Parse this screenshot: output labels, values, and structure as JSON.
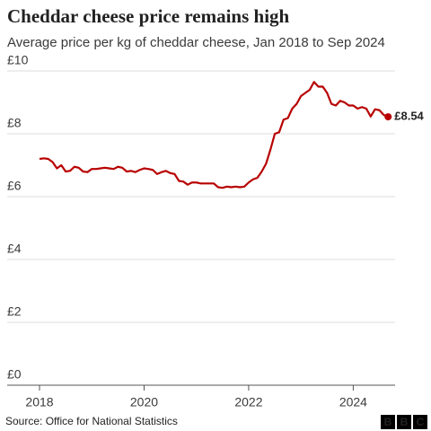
{
  "chart_data": {
    "type": "line",
    "title": "Cheddar cheese price remains high",
    "subtitle": "Average price per kg of cheddar cheese, Jan 2018 to Sep 2024",
    "source": "Source: Office for National Statistics",
    "logo": [
      "B",
      "B",
      "C"
    ],
    "x": [
      2018,
      2018.083,
      2018.167,
      2018.25,
      2018.333,
      2018.417,
      2018.5,
      2018.583,
      2018.667,
      2018.75,
      2018.833,
      2018.917,
      2019,
      2019.083,
      2019.167,
      2019.25,
      2019.333,
      2019.417,
      2019.5,
      2019.583,
      2019.667,
      2019.75,
      2019.833,
      2019.917,
      2020,
      2020.083,
      2020.167,
      2020.25,
      2020.333,
      2020.417,
      2020.5,
      2020.583,
      2020.667,
      2020.75,
      2020.833,
      2020.917,
      2021,
      2021.083,
      2021.167,
      2021.25,
      2021.333,
      2021.417,
      2021.5,
      2021.583,
      2021.667,
      2021.75,
      2021.833,
      2021.917,
      2022,
      2022.083,
      2022.167,
      2022.25,
      2022.333,
      2022.417,
      2022.5,
      2022.583,
      2022.667,
      2022.75,
      2022.833,
      2022.917,
      2023,
      2023.083,
      2023.167,
      2023.25,
      2023.333,
      2023.417,
      2023.5,
      2023.583,
      2023.667,
      2023.75,
      2023.833,
      2023.917,
      2024,
      2024.083,
      2024.167,
      2024.25,
      2024.333,
      2024.417,
      2024.5,
      2024.583,
      2024.667
    ],
    "series": [
      {
        "name": "Cheddar cheese",
        "color": "#b80000",
        "values": [
          7.2,
          7.22,
          7.2,
          7.1,
          6.9,
          7.0,
          6.8,
          6.82,
          6.95,
          6.92,
          6.8,
          6.78,
          6.88,
          6.88,
          6.9,
          6.92,
          6.9,
          6.88,
          6.95,
          6.92,
          6.8,
          6.82,
          6.78,
          6.85,
          6.9,
          6.88,
          6.85,
          6.72,
          6.78,
          6.82,
          6.75,
          6.72,
          6.5,
          6.48,
          6.38,
          6.45,
          6.45,
          6.42,
          6.42,
          6.42,
          6.42,
          6.3,
          6.28,
          6.32,
          6.3,
          6.32,
          6.3,
          6.32,
          6.45,
          6.55,
          6.6,
          6.8,
          7.05,
          7.5,
          8.0,
          8.05,
          8.45,
          8.5,
          8.8,
          8.95,
          9.2,
          9.3,
          9.4,
          9.65,
          9.5,
          9.5,
          9.3,
          8.95,
          8.9,
          9.05,
          9.0,
          8.9,
          8.9,
          8.8,
          8.85,
          8.8,
          8.55,
          8.78,
          8.75,
          8.6,
          8.54
        ],
        "value_labels": [
          null,
          null,
          null,
          null,
          null,
          null,
          null,
          null,
          null,
          null,
          null,
          null,
          null,
          null,
          null,
          null,
          null,
          null,
          null,
          null,
          null,
          null,
          null,
          null,
          null,
          null,
          null,
          null,
          null,
          null,
          null,
          null,
          null,
          null,
          null,
          null,
          null,
          null,
          null,
          null,
          null,
          null,
          null,
          null,
          null,
          null,
          null,
          null,
          null,
          null,
          null,
          null,
          null,
          null,
          null,
          null,
          null,
          null,
          null,
          null,
          null,
          null,
          null,
          null,
          null,
          null,
          null,
          null,
          null,
          null,
          null,
          null,
          null,
          null,
          null,
          null,
          null,
          null,
          null,
          null,
          "£8.54"
        ]
      }
    ],
    "xlim": [
      2018,
      2024.8
    ],
    "xticks": [
      2018,
      2020,
      2022,
      2024
    ],
    "ylim": [
      0,
      10
    ],
    "yticks": [
      {
        "value": 0,
        "label": "£0"
      },
      {
        "value": 2,
        "label": "£2"
      },
      {
        "value": 4,
        "label": "£4"
      },
      {
        "value": 6,
        "label": "£6"
      },
      {
        "value": 8,
        "label": "£8"
      },
      {
        "value": 10,
        "label": "£10"
      }
    ],
    "grid": true
  }
}
